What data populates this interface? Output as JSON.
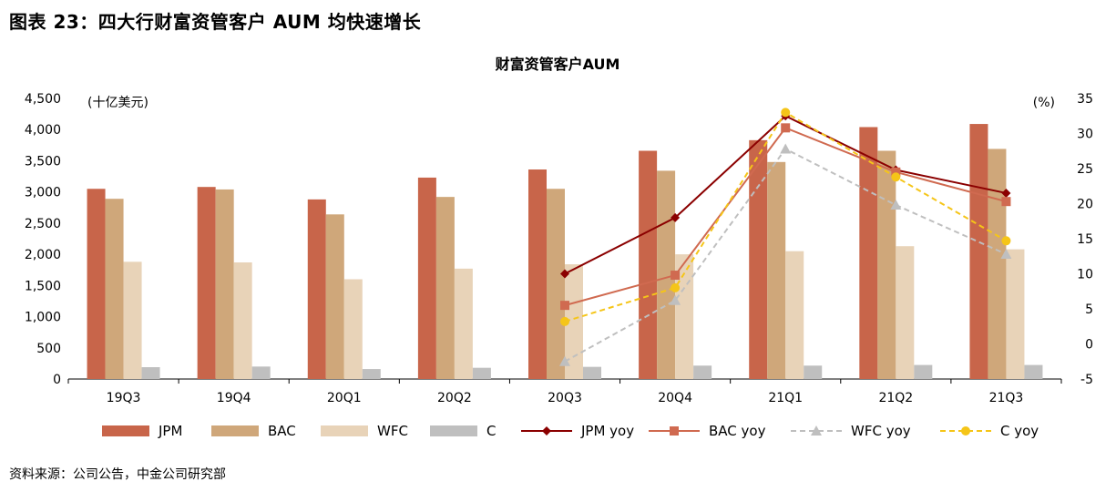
{
  "figure_title": "图表 23：四大行财富资管客户 AUM 均快速增长",
  "source": "资料来源：公司公告，中金公司研究部",
  "chart_data": {
    "type": "bar",
    "title": "财富资管客户AUM",
    "left_unit": "(十亿美元)",
    "right_unit": "(%)",
    "categories": [
      "19Q3",
      "19Q4",
      "20Q1",
      "20Q2",
      "20Q3",
      "20Q4",
      "21Q1",
      "21Q2",
      "21Q3"
    ],
    "ylim": [
      0,
      4500
    ],
    "yticks": [
      0,
      500,
      1000,
      1500,
      2000,
      2500,
      3000,
      3500,
      4000,
      4500
    ],
    "y2lim": [
      -5,
      35
    ],
    "y2ticks": [
      -5,
      0,
      5,
      10,
      15,
      20,
      25,
      30,
      35
    ],
    "bar_series": [
      {
        "name": "JPM",
        "color": "#C8654A",
        "values": [
          3050,
          3080,
          2880,
          3230,
          3360,
          3660,
          3830,
          4040,
          4090
        ]
      },
      {
        "name": "BAC",
        "color": "#CFA77A",
        "values": [
          2890,
          3040,
          2640,
          2920,
          3050,
          3340,
          3480,
          3660,
          3690
        ]
      },
      {
        "name": "WFC",
        "color": "#E8D3B8",
        "values": [
          1880,
          1870,
          1600,
          1770,
          1840,
          2000,
          2050,
          2130,
          2080
        ]
      },
      {
        "name": "C",
        "color": "#BFBFBF",
        "values": [
          190,
          200,
          160,
          180,
          195,
          215,
          215,
          225,
          225
        ]
      }
    ],
    "line_series": [
      {
        "name": "JPM yoy",
        "color": "#8B0000",
        "marker": "diamond",
        "dash": "",
        "values": [
          null,
          null,
          null,
          null,
          10.0,
          18.0,
          32.5,
          24.8,
          21.5
        ]
      },
      {
        "name": "BAC yoy",
        "color": "#D06A50",
        "marker": "square",
        "dash": "",
        "values": [
          null,
          null,
          null,
          null,
          5.5,
          9.8,
          30.8,
          24.5,
          20.3
        ]
      },
      {
        "name": "WFC yoy",
        "color": "#BFBFBF",
        "marker": "triangle",
        "dash": "6,4",
        "values": [
          null,
          null,
          null,
          null,
          -2.5,
          6.2,
          27.8,
          19.8,
          12.8
        ]
      },
      {
        "name": "C yoy",
        "color": "#F5C518",
        "marker": "circle",
        "dash": "6,4",
        "values": [
          null,
          null,
          null,
          null,
          3.2,
          8.0,
          33.0,
          23.8,
          14.7
        ]
      }
    ]
  }
}
